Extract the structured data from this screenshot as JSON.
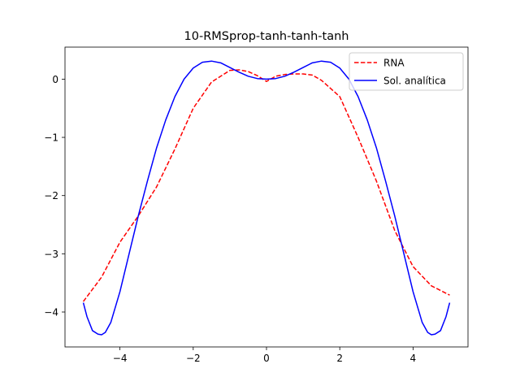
{
  "chart_data": {
    "type": "line",
    "title": "10-RMSprop-tanh-tanh-tanh",
    "xlabel": "",
    "ylabel": "",
    "xlim": [
      -5.5,
      5.5
    ],
    "ylim": [
      -4.6,
      0.55
    ],
    "xticks": [
      -4,
      -2,
      0,
      2,
      4
    ],
    "yticks": [
      -4,
      -3,
      -2,
      -1,
      0
    ],
    "xtick_labels": [
      "−4",
      "−2",
      "0",
      "2",
      "4"
    ],
    "ytick_labels": [
      "−4",
      "−3",
      "−2",
      "−1",
      "0"
    ],
    "grid": false,
    "legend": {
      "placement": "top-right"
    },
    "series": [
      {
        "name": "RNA",
        "color": "#ff0000",
        "style": "dashed",
        "x": [
          -5.0,
          -4.5,
          -4.0,
          -3.5,
          -3.0,
          -2.5,
          -2.0,
          -1.5,
          -1.0,
          -0.75,
          -0.5,
          -0.25,
          0.0,
          0.25,
          0.5,
          0.75,
          1.0,
          1.25,
          1.5,
          2.0,
          2.5,
          3.0,
          3.5,
          4.0,
          4.5,
          5.0
        ],
        "y": [
          -3.82,
          -3.4,
          -2.8,
          -2.35,
          -1.85,
          -1.2,
          -0.5,
          -0.05,
          0.15,
          0.16,
          0.13,
          0.06,
          -0.04,
          0.05,
          0.08,
          0.09,
          0.09,
          0.07,
          -0.02,
          -0.3,
          -1.0,
          -1.75,
          -2.6,
          -3.22,
          -3.55,
          -3.71
        ]
      },
      {
        "name": "Sol. analítica",
        "color": "#0000ff",
        "style": "solid",
        "x": [
          -5.0,
          -4.9,
          -4.75,
          -4.6,
          -4.5,
          -4.4,
          -4.25,
          -4.0,
          -3.75,
          -3.5,
          -3.25,
          -3.0,
          -2.75,
          -2.5,
          -2.25,
          -2.0,
          -1.75,
          -1.5,
          -1.25,
          -1.0,
          -0.75,
          -0.5,
          -0.25,
          0.0,
          0.25,
          0.5,
          0.75,
          1.0,
          1.25,
          1.5,
          1.75,
          2.0,
          2.25,
          2.5,
          2.75,
          3.0,
          3.25,
          3.5,
          3.75,
          4.0,
          4.25,
          4.4,
          4.5,
          4.6,
          4.75,
          4.9,
          5.0
        ],
        "y": [
          -3.84,
          -4.08,
          -4.32,
          -4.38,
          -4.39,
          -4.35,
          -4.18,
          -3.65,
          -3.0,
          -2.35,
          -1.75,
          -1.18,
          -0.7,
          -0.3,
          0.0,
          0.19,
          0.29,
          0.31,
          0.28,
          0.2,
          0.12,
          0.05,
          0.01,
          0.0,
          0.01,
          0.05,
          0.12,
          0.2,
          0.28,
          0.31,
          0.29,
          0.19,
          0.0,
          -0.3,
          -0.7,
          -1.18,
          -1.75,
          -2.35,
          -3.0,
          -3.65,
          -4.18,
          -4.35,
          -4.39,
          -4.38,
          -4.32,
          -4.08,
          -3.84
        ]
      }
    ]
  }
}
